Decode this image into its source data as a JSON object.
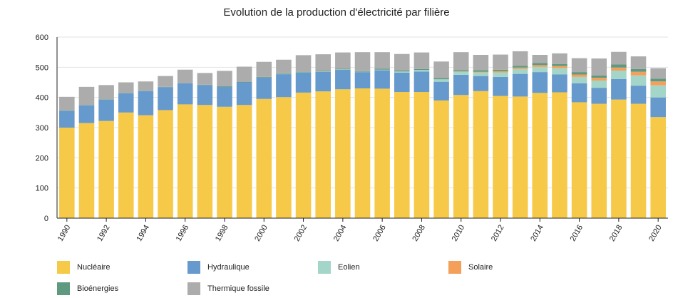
{
  "chart_data": {
    "type": "bar",
    "stacked": true,
    "title": "Evolution de la production d'électricité par filière",
    "xlabel": "",
    "ylabel": "",
    "ylim": [
      0,
      600
    ],
    "yticks": [
      "0",
      "100",
      "200",
      "300",
      "400",
      "500",
      "600"
    ],
    "grid": "horizontal",
    "legend_position": "bottom",
    "categories": [
      "1990",
      "1991",
      "1992",
      "1993",
      "1994",
      "1995",
      "1996",
      "1997",
      "1998",
      "1999",
      "2000",
      "2001",
      "2002",
      "2003",
      "2004",
      "2005",
      "2006",
      "2007",
      "2008",
      "2009",
      "2010",
      "2011",
      "2012",
      "2013",
      "2014",
      "2015",
      "2016",
      "2017",
      "2018",
      "2019",
      "2020"
    ],
    "xtick_labels": [
      "1990",
      "1992",
      "1994",
      "1996",
      "1998",
      "2000",
      "2002",
      "2004",
      "2006",
      "2008",
      "2010",
      "2012",
      "2014",
      "2016",
      "2018",
      "2020"
    ],
    "series": [
      {
        "name": "Nucléaire",
        "color": "#f7c948",
        "values": [
          300,
          315,
          322,
          350,
          341,
          358,
          377,
          375,
          369,
          375,
          395,
          401,
          416,
          420,
          427,
          430,
          429,
          418,
          418,
          390,
          408,
          421,
          405,
          403,
          415,
          417,
          384,
          379,
          393,
          379,
          335
        ]
      },
      {
        "name": "Hydraulique",
        "color": "#6699cc",
        "values": [
          56,
          59,
          71,
          64,
          80,
          76,
          70,
          66,
          66,
          75,
          71,
          76,
          66,
          65,
          65,
          54,
          61,
          64,
          68,
          62,
          67,
          50,
          63,
          75,
          69,
          59,
          63,
          53,
          68,
          60,
          65
        ]
      },
      {
        "name": "Eolien",
        "color": "#a3d5c9",
        "values": [
          0,
          0,
          0,
          0,
          0,
          0,
          0,
          0,
          0,
          0,
          0,
          1,
          1,
          1,
          1,
          1,
          2,
          4,
          5,
          8,
          10,
          12,
          15,
          16,
          17,
          21,
          21,
          24,
          28,
          34,
          40
        ]
      },
      {
        "name": "Solaire",
        "color": "#f5a05a",
        "values": [
          0,
          0,
          0,
          0,
          0,
          0,
          0,
          0,
          0,
          0,
          0,
          0,
          0,
          0,
          0,
          0,
          0,
          0,
          0,
          0,
          1,
          2,
          4,
          5,
          6,
          7,
          8,
          9,
          10,
          12,
          13
        ]
      },
      {
        "name": "Bioénergies",
        "color": "#5e9980",
        "values": [
          1,
          1,
          1,
          1,
          1,
          1,
          1,
          1,
          2,
          2,
          2,
          2,
          2,
          2,
          2,
          2,
          3,
          3,
          3,
          4,
          4,
          5,
          5,
          6,
          7,
          7,
          8,
          8,
          10,
          9,
          9
        ]
      },
      {
        "name": "Thermique fossile",
        "color": "#acacac",
        "values": [
          45,
          60,
          47,
          35,
          31,
          36,
          44,
          39,
          51,
          50,
          50,
          45,
          55,
          55,
          54,
          63,
          55,
          55,
          55,
          55,
          60,
          51,
          50,
          48,
          27,
          35,
          46,
          56,
          42,
          42,
          35
        ]
      }
    ]
  }
}
